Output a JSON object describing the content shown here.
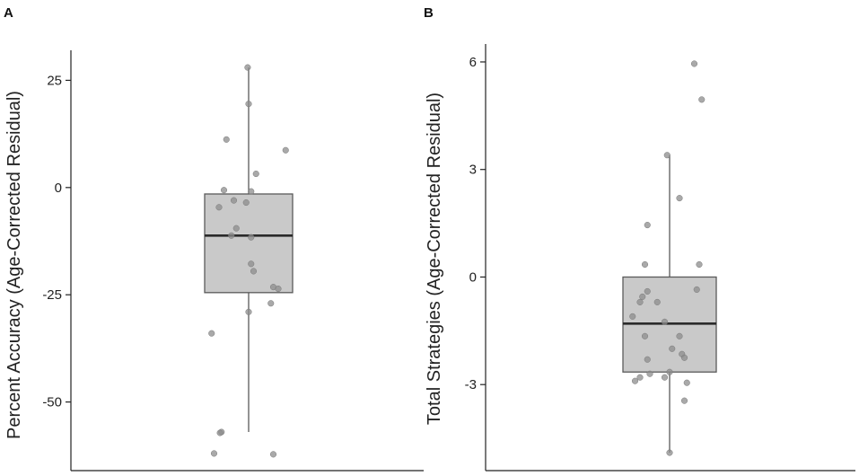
{
  "chart_data": [
    {
      "type": "box",
      "panel_label": "A",
      "ylabel": "Percent Accuracy (Age-Corrected Residual)",
      "yticks": [
        25,
        0,
        -25,
        -50
      ],
      "ylim": [
        -66,
        32
      ],
      "box": {
        "whisker_low": -57,
        "q1": -24.5,
        "median": -11.2,
        "q3": -1.5,
        "whisker_high": 28
      },
      "points": [
        {
          "x": -0.02,
          "y": 28
        },
        {
          "x": 0.0,
          "y": 19.5
        },
        {
          "x": -0.45,
          "y": 11.2
        },
        {
          "x": 0.75,
          "y": 8.7
        },
        {
          "x": 0.15,
          "y": 3.2
        },
        {
          "x": -0.5,
          "y": -0.6
        },
        {
          "x": 0.05,
          "y": -0.9
        },
        {
          "x": -0.3,
          "y": -3.0
        },
        {
          "x": -0.6,
          "y": -4.6
        },
        {
          "x": -0.05,
          "y": -3.5
        },
        {
          "x": -0.25,
          "y": -9.5
        },
        {
          "x": -0.35,
          "y": -11.2
        },
        {
          "x": 0.05,
          "y": -11.6
        },
        {
          "x": 0.05,
          "y": -17.8
        },
        {
          "x": 0.1,
          "y": -19.5
        },
        {
          "x": 0.5,
          "y": -23.2
        },
        {
          "x": 0.6,
          "y": -23.6
        },
        {
          "x": 0.45,
          "y": -27
        },
        {
          "x": 0.0,
          "y": -29
        },
        {
          "x": -0.75,
          "y": -34
        },
        {
          "x": -0.55,
          "y": -57
        },
        {
          "x": -0.58,
          "y": -57.2
        },
        {
          "x": -0.7,
          "y": -62
        },
        {
          "x": 0.5,
          "y": -62.2
        }
      ]
    },
    {
      "type": "box",
      "panel_label": "B",
      "ylabel": "Total Strategies (Age-Corrected Residual)",
      "yticks": [
        6,
        3,
        0,
        -3
      ],
      "ylim": [
        -5.4,
        6.5
      ],
      "box": {
        "whisker_low": -4.9,
        "q1": -2.65,
        "median": -1.3,
        "q3": 0,
        "whisker_high": 3.4
      },
      "points": [
        {
          "x": 0.5,
          "y": 5.95
        },
        {
          "x": 0.65,
          "y": 4.95
        },
        {
          "x": -0.05,
          "y": 3.4
        },
        {
          "x": 0.2,
          "y": 2.2
        },
        {
          "x": -0.45,
          "y": 1.45
        },
        {
          "x": -0.5,
          "y": 0.35
        },
        {
          "x": 0.6,
          "y": 0.35
        },
        {
          "x": -0.45,
          "y": -0.4
        },
        {
          "x": -0.55,
          "y": -0.55
        },
        {
          "x": -0.6,
          "y": -0.7
        },
        {
          "x": 0.55,
          "y": -0.35
        },
        {
          "x": -0.25,
          "y": -0.7
        },
        {
          "x": -0.75,
          "y": -1.1
        },
        {
          "x": -0.1,
          "y": -1.25
        },
        {
          "x": -0.5,
          "y": -1.65
        },
        {
          "x": 0.2,
          "y": -1.65
        },
        {
          "x": 0.05,
          "y": -2.0
        },
        {
          "x": 0.25,
          "y": -2.15
        },
        {
          "x": 0.3,
          "y": -2.25
        },
        {
          "x": -0.45,
          "y": -2.3
        },
        {
          "x": 0.0,
          "y": -2.65
        },
        {
          "x": -0.4,
          "y": -2.7
        },
        {
          "x": -0.1,
          "y": -2.8
        },
        {
          "x": -0.6,
          "y": -2.8
        },
        {
          "x": -0.7,
          "y": -2.9
        },
        {
          "x": 0.35,
          "y": -2.95
        },
        {
          "x": 0.3,
          "y": -3.45
        },
        {
          "x": 0.0,
          "y": -4.9
        }
      ]
    }
  ],
  "colors": {
    "box_fill": "#c9c9c9",
    "box_stroke": "#5a5a5a",
    "median": "#2a2a2a",
    "point": "#8c8c8c",
    "point_stroke": "#7a7a7a",
    "axis": "#222222"
  }
}
